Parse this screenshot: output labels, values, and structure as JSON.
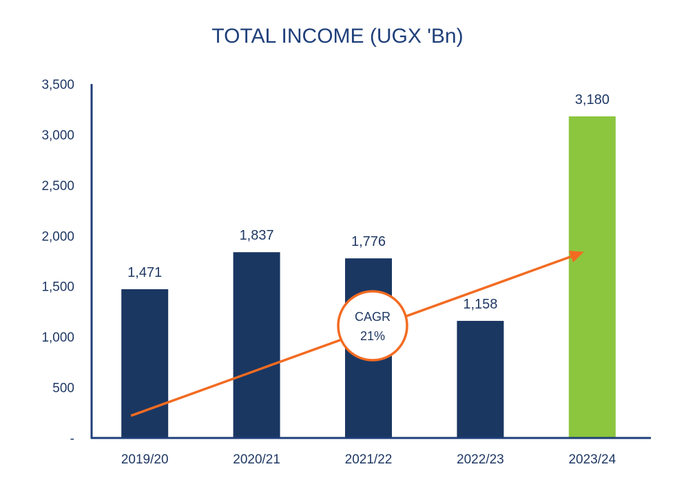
{
  "chart_data": {
    "type": "bar",
    "title": "TOTAL INCOME (UGX 'Bn)",
    "categories": [
      "2019/20",
      "2020/21",
      "2021/22",
      "2022/23",
      "2023/24"
    ],
    "values": [
      1471,
      1837,
      1776,
      1158,
      3180
    ],
    "value_labels": [
      "1,471",
      "1,837",
      "1,776",
      "1,158",
      "3,180"
    ],
    "bar_colors": [
      "#1a3762",
      "#1a3762",
      "#1a3762",
      "#1a3762",
      "#8cc63f"
    ],
    "ylim": [
      0,
      3500
    ],
    "yticks": [
      0,
      500,
      1000,
      1500,
      2000,
      2500,
      3000,
      3500
    ],
    "ytick_labels": [
      "-",
      "500",
      "1,000",
      "1,500",
      "2,000",
      "2,500",
      "3,000",
      "3,500"
    ],
    "xlabel": "",
    "ylabel": "",
    "grid": false,
    "trend_arrow": {
      "from": 220,
      "to": 1840,
      "color": "#f26b21"
    },
    "annotation": {
      "line1": "CAGR",
      "line2": "21%",
      "color": "#f26b21"
    },
    "axis_color": "#1f3f7a"
  }
}
